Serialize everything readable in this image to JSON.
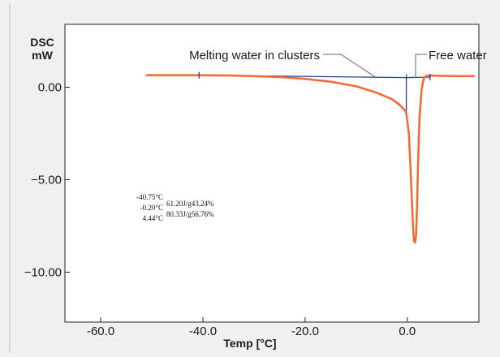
{
  "chart_data": {
    "type": "line",
    "title": "",
    "xlabel": "Temp [°C]",
    "ylabel": "DSC",
    "yunit": "mW",
    "xlim": [
      -67,
      14
    ],
    "ylim": [
      -12.7,
      3.4
    ],
    "xticks": [
      {
        "value": -60,
        "label": "-60.0"
      },
      {
        "value": -40,
        "label": "-40.0"
      },
      {
        "value": -20,
        "label": "-20.0"
      },
      {
        "value": 0,
        "label": "0.0"
      }
    ],
    "yticks": [
      {
        "value": 0,
        "label": "0.00"
      },
      {
        "value": -5,
        "label": "−5.00"
      },
      {
        "value": -10,
        "label": "−10.00"
      }
    ],
    "grid": false,
    "series": [
      {
        "color": "#f26b3a",
        "x": [
          -51,
          -45,
          -40.75,
          -35,
          -30,
          -25,
          -20,
          -15,
          -10,
          -6,
          -3,
          -1.5,
          -0.5,
          -0.2,
          0.3,
          0.6,
          0.9,
          1.1,
          1.3,
          1.5,
          1.7,
          1.9,
          2.1,
          2.4,
          2.8,
          3.2,
          3.6,
          4.0,
          4.44,
          6,
          10,
          13
        ],
        "y": [
          0.65,
          0.65,
          0.65,
          0.63,
          0.6,
          0.55,
          0.45,
          0.3,
          0.05,
          -0.3,
          -0.65,
          -0.95,
          -1.25,
          -1.4,
          -2.5,
          -4.2,
          -6.2,
          -7.5,
          -8.3,
          -8.4,
          -8.0,
          -6.5,
          -4.0,
          -1.5,
          -0.1,
          0.45,
          0.6,
          0.62,
          0.63,
          0.62,
          0.6,
          0.6
        ]
      }
    ],
    "baselines": [
      {
        "color": "#2a3f8f",
        "x": [
          -40.75,
          -0.2
        ],
        "y": [
          0.65,
          0.52
        ]
      },
      {
        "color": "#2a3f8f",
        "x": [
          -0.2,
          4.44
        ],
        "y": [
          0.52,
          0.55
        ]
      }
    ],
    "markers": [
      {
        "x": -40.75,
        "y": 0.65
      },
      {
        "x": -0.2,
        "y": 0.52
      },
      {
        "x": 4.44,
        "y": 0.55
      }
    ],
    "drop_line": {
      "x": -0.2,
      "y_top": 0.52,
      "y_bottom": -1.4
    },
    "annotations": [
      {
        "text": "Melting water in clusters",
        "target_x": -6,
        "target_y": 0.5
      },
      {
        "text": "Free water",
        "target_x": 1.6,
        "target_y": 0.5
      }
    ],
    "peak_table": [
      {
        "temp": "-40.75°C",
        "enthalpy": ""
      },
      {
        "temp": "-0.20°C",
        "enthalpy": "61.20J/g43.24%"
      },
      {
        "temp": "4.44°C",
        "enthalpy": "80.33J/g56.76%"
      }
    ]
  }
}
